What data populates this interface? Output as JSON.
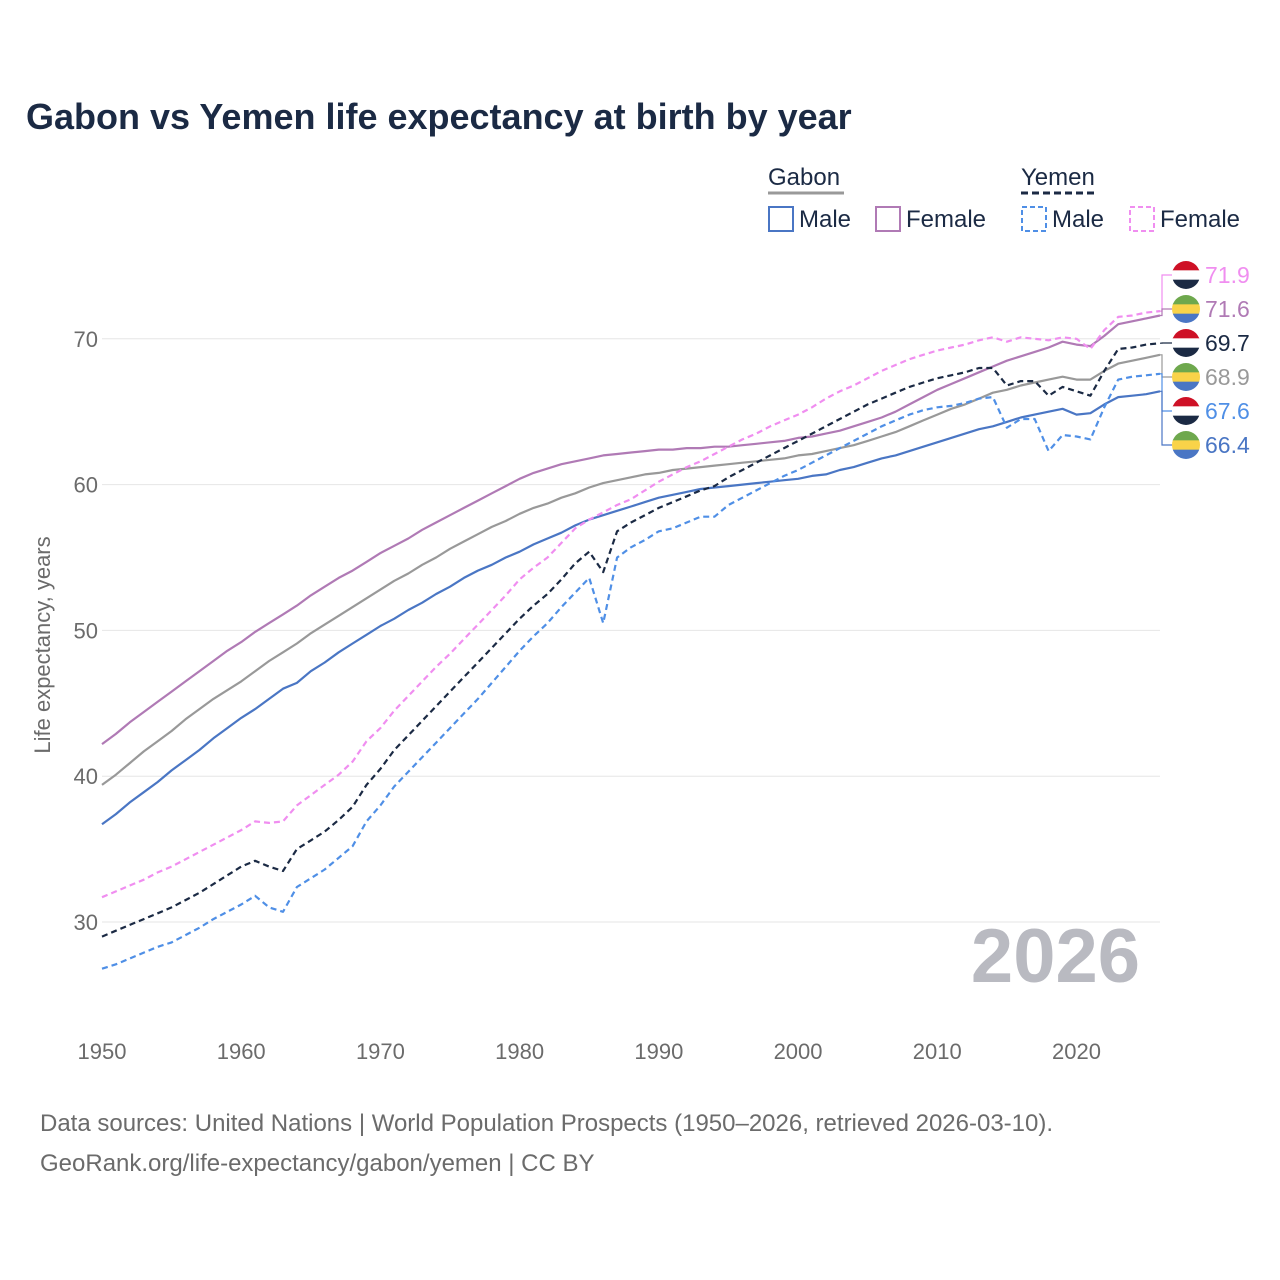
{
  "title": "Gabon vs Yemen life expectancy at birth by year",
  "source": {
    "line1": "Data sources: United Nations | World Population Prospects (1950–2026, retrieved 2026-03-10).",
    "line2": "GeoRank.org/life-expectancy/gabon/yemen | CC BY"
  },
  "year_label": "2026",
  "legend": {
    "gabon": {
      "name": "Gabon",
      "male": "Male",
      "female": "Female"
    },
    "yemen": {
      "name": "Yemen",
      "male": "Male",
      "female": "Female"
    }
  },
  "colors": {
    "gabon_total": "#999999",
    "gabon_male": "#4a76c4",
    "gabon_female": "#b07ab5",
    "yemen_total": "#1b2a44",
    "yemen_male": "#4f8fe6",
    "yemen_female": "#f08ef0"
  },
  "end_labels": [
    {
      "series": "yemen_female",
      "value": "71.9",
      "flag": "yemen-flag-icon"
    },
    {
      "series": "gabon_female",
      "value": "71.6",
      "flag": "gabon-flag-icon"
    },
    {
      "series": "yemen_total",
      "value": "69.7",
      "flag": "yemen-flag-icon"
    },
    {
      "series": "gabon_total",
      "value": "68.9",
      "flag": "gabon-flag-icon"
    },
    {
      "series": "yemen_male",
      "value": "67.6",
      "flag": "yemen-flag-icon"
    },
    {
      "series": "gabon_male",
      "value": "66.4",
      "flag": "gabon-flag-icon"
    }
  ],
  "chart_data": {
    "type": "line",
    "title": "Gabon vs Yemen life expectancy at birth by year",
    "xlabel": "",
    "ylabel": "Life expectancy, years",
    "xlim": [
      1950,
      2026
    ],
    "ylim": [
      30,
      75
    ],
    "xticks": [
      1950,
      1960,
      1970,
      1980,
      1990,
      2000,
      2010,
      2020
    ],
    "yticks": [
      30,
      40,
      50,
      60,
      70
    ],
    "grid": true,
    "x": [
      1950,
      1951,
      1952,
      1953,
      1954,
      1955,
      1956,
      1957,
      1958,
      1959,
      1960,
      1961,
      1962,
      1963,
      1964,
      1965,
      1966,
      1967,
      1968,
      1969,
      1970,
      1971,
      1972,
      1973,
      1974,
      1975,
      1976,
      1977,
      1978,
      1979,
      1980,
      1981,
      1982,
      1983,
      1984,
      1985,
      1986,
      1987,
      1988,
      1989,
      1990,
      1991,
      1992,
      1993,
      1994,
      1995,
      1996,
      1997,
      1998,
      1999,
      2000,
      2001,
      2002,
      2003,
      2004,
      2005,
      2006,
      2007,
      2008,
      2009,
      2010,
      2011,
      2012,
      2013,
      2014,
      2015,
      2016,
      2017,
      2018,
      2019,
      2020,
      2021,
      2022,
      2023,
      2024,
      2025,
      2026
    ],
    "series": [
      {
        "key": "gabon_total",
        "name": "Gabon",
        "dashed": false,
        "values": [
          39.4,
          40.1,
          40.9,
          41.7,
          42.4,
          43.1,
          43.9,
          44.6,
          45.3,
          45.9,
          46.5,
          47.2,
          47.9,
          48.5,
          49.1,
          49.8,
          50.4,
          51.0,
          51.6,
          52.2,
          52.8,
          53.4,
          53.9,
          54.5,
          55.0,
          55.6,
          56.1,
          56.6,
          57.1,
          57.5,
          58.0,
          58.4,
          58.7,
          59.1,
          59.4,
          59.8,
          60.1,
          60.3,
          60.5,
          60.7,
          60.8,
          61.0,
          61.1,
          61.2,
          61.3,
          61.4,
          61.5,
          61.6,
          61.7,
          61.8,
          62.0,
          62.1,
          62.3,
          62.5,
          62.7,
          63.0,
          63.3,
          63.6,
          64.0,
          64.4,
          64.8,
          65.2,
          65.5,
          65.9,
          66.3,
          66.5,
          66.8,
          67.0,
          67.2,
          67.4,
          67.2,
          67.2,
          67.8,
          68.3,
          68.5,
          68.7,
          68.9
        ]
      },
      {
        "key": "gabon_male",
        "name": "Gabon Male",
        "dashed": false,
        "values": [
          36.7,
          37.4,
          38.2,
          38.9,
          39.6,
          40.4,
          41.1,
          41.8,
          42.6,
          43.3,
          44.0,
          44.6,
          45.3,
          46.0,
          46.4,
          47.2,
          47.8,
          48.5,
          49.1,
          49.7,
          50.3,
          50.8,
          51.4,
          51.9,
          52.5,
          53.0,
          53.6,
          54.1,
          54.5,
          55.0,
          55.4,
          55.9,
          56.3,
          56.7,
          57.2,
          57.6,
          57.9,
          58.2,
          58.5,
          58.8,
          59.1,
          59.3,
          59.5,
          59.7,
          59.8,
          59.9,
          60.0,
          60.1,
          60.2,
          60.3,
          60.4,
          60.6,
          60.7,
          61.0,
          61.2,
          61.5,
          61.8,
          62.0,
          62.3,
          62.6,
          62.9,
          63.2,
          63.5,
          63.8,
          64.0,
          64.3,
          64.6,
          64.8,
          65.0,
          65.2,
          64.8,
          64.9,
          65.5,
          66.0,
          66.1,
          66.2,
          66.4
        ]
      },
      {
        "key": "gabon_female",
        "name": "Gabon Female",
        "dashed": false,
        "values": [
          42.2,
          42.9,
          43.7,
          44.4,
          45.1,
          45.8,
          46.5,
          47.2,
          47.9,
          48.6,
          49.2,
          49.9,
          50.5,
          51.1,
          51.7,
          52.4,
          53.0,
          53.6,
          54.1,
          54.7,
          55.3,
          55.8,
          56.3,
          56.9,
          57.4,
          57.9,
          58.4,
          58.9,
          59.4,
          59.9,
          60.4,
          60.8,
          61.1,
          61.4,
          61.6,
          61.8,
          62.0,
          62.1,
          62.2,
          62.3,
          62.4,
          62.4,
          62.5,
          62.5,
          62.6,
          62.6,
          62.7,
          62.8,
          62.9,
          63.0,
          63.2,
          63.3,
          63.5,
          63.7,
          64.0,
          64.3,
          64.6,
          65.0,
          65.5,
          66.0,
          66.5,
          66.9,
          67.3,
          67.7,
          68.1,
          68.5,
          68.8,
          69.1,
          69.4,
          69.8,
          69.6,
          69.5,
          70.2,
          71.0,
          71.2,
          71.4,
          71.6
        ]
      },
      {
        "key": "yemen_total",
        "name": "Yemen",
        "dashed": true,
        "values": [
          29.0,
          29.4,
          29.8,
          30.2,
          30.6,
          31.0,
          31.5,
          32.0,
          32.6,
          33.2,
          33.8,
          34.2,
          33.8,
          33.5,
          35.0,
          35.6,
          36.2,
          37.0,
          37.9,
          39.4,
          40.5,
          41.8,
          42.8,
          43.8,
          44.8,
          45.8,
          46.8,
          47.8,
          48.8,
          49.8,
          50.8,
          51.7,
          52.5,
          53.5,
          54.6,
          55.4,
          54.0,
          56.8,
          57.4,
          57.9,
          58.4,
          58.8,
          59.2,
          59.6,
          59.9,
          60.5,
          61.0,
          61.5,
          62.0,
          62.5,
          63.0,
          63.5,
          64.0,
          64.5,
          65.0,
          65.5,
          65.9,
          66.3,
          66.7,
          67.0,
          67.3,
          67.5,
          67.7,
          68.0,
          68.0,
          66.8,
          67.1,
          67.1,
          66.1,
          66.7,
          66.4,
          66.1,
          67.8,
          69.3,
          69.4,
          69.6,
          69.7
        ]
      },
      {
        "key": "yemen_male",
        "name": "Yemen Male",
        "dashed": true,
        "values": [
          26.8,
          27.1,
          27.5,
          27.9,
          28.3,
          28.6,
          29.1,
          29.6,
          30.2,
          30.7,
          31.2,
          31.8,
          31.0,
          30.7,
          32.4,
          33.0,
          33.6,
          34.4,
          35.2,
          36.9,
          38.0,
          39.3,
          40.3,
          41.3,
          42.3,
          43.3,
          44.3,
          45.3,
          46.4,
          47.5,
          48.6,
          49.6,
          50.5,
          51.6,
          52.6,
          53.6,
          50.5,
          55.0,
          55.7,
          56.2,
          56.8,
          57.0,
          57.4,
          57.8,
          57.8,
          58.6,
          59.1,
          59.6,
          60.1,
          60.6,
          61.0,
          61.5,
          62.0,
          62.5,
          63.0,
          63.5,
          64.0,
          64.4,
          64.8,
          65.1,
          65.3,
          65.4,
          65.6,
          65.9,
          66.0,
          63.9,
          64.5,
          64.5,
          62.3,
          63.4,
          63.3,
          63.1,
          65.3,
          67.2,
          67.4,
          67.5,
          67.6
        ]
      },
      {
        "key": "yemen_female",
        "name": "Yemen Female",
        "dashed": true,
        "values": [
          31.7,
          32.1,
          32.5,
          32.9,
          33.4,
          33.8,
          34.3,
          34.8,
          35.3,
          35.8,
          36.3,
          36.9,
          36.8,
          36.9,
          38.0,
          38.7,
          39.4,
          40.1,
          41.0,
          42.4,
          43.3,
          44.5,
          45.5,
          46.5,
          47.5,
          48.4,
          49.4,
          50.4,
          51.4,
          52.4,
          53.5,
          54.3,
          55.0,
          56.0,
          57.0,
          57.6,
          58.1,
          58.6,
          59.0,
          59.6,
          60.2,
          60.7,
          61.2,
          61.6,
          62.1,
          62.6,
          63.1,
          63.5,
          64.0,
          64.4,
          64.8,
          65.3,
          65.9,
          66.4,
          66.8,
          67.3,
          67.8,
          68.2,
          68.6,
          68.9,
          69.2,
          69.4,
          69.6,
          69.9,
          70.1,
          69.8,
          70.1,
          70.0,
          69.9,
          70.1,
          70.0,
          69.3,
          70.6,
          71.5,
          71.6,
          71.8,
          71.9
        ]
      }
    ]
  }
}
